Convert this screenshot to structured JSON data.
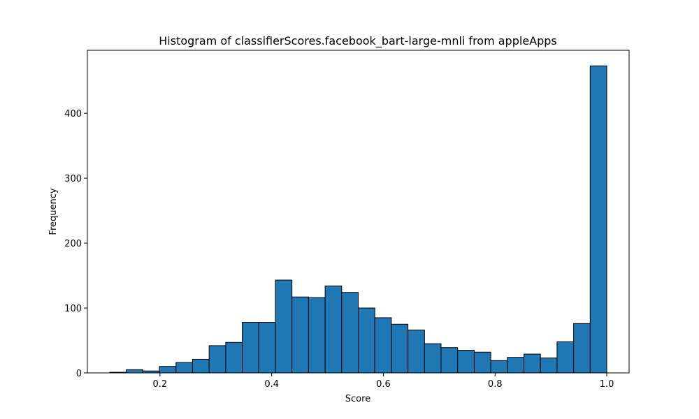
{
  "chart_data": {
    "type": "bar",
    "title": "Histogram of classifierScores.facebook_bart-large-mnli from appleApps",
    "xlabel": "Score",
    "ylabel": "Frequency",
    "xlim": [
      0.07,
      1.04
    ],
    "ylim": [
      0,
      497
    ],
    "grid": false,
    "legend": "none",
    "bar_color": "#1f77b4",
    "edge_color": "#000000",
    "bin_edges": [
      0.11,
      0.1397,
      0.1693,
      0.199,
      0.2287,
      0.2583,
      0.288,
      0.3177,
      0.3473,
      0.377,
      0.4067,
      0.4363,
      0.466,
      0.4957,
      0.5253,
      0.555,
      0.5847,
      0.6143,
      0.644,
      0.6737,
      0.7033,
      0.733,
      0.7627,
      0.7923,
      0.822,
      0.8517,
      0.8813,
      0.911,
      0.9407,
      0.9703,
      1.0
    ],
    "values": [
      1,
      5,
      3,
      10,
      16,
      21,
      42,
      47,
      78,
      78,
      143,
      117,
      116,
      134,
      124,
      100,
      85,
      75,
      66,
      45,
      39,
      35,
      32,
      19,
      24,
      29,
      23,
      48,
      76,
      473
    ],
    "x_ticks": [
      {
        "value": 0.2,
        "label": "0.2"
      },
      {
        "value": 0.4,
        "label": "0.4"
      },
      {
        "value": 0.6,
        "label": "0.6"
      },
      {
        "value": 0.8,
        "label": "0.8"
      },
      {
        "value": 1.0,
        "label": "1.0"
      }
    ],
    "y_ticks": [
      {
        "value": 0,
        "label": "0"
      },
      {
        "value": 100,
        "label": "100"
      },
      {
        "value": 200,
        "label": "200"
      },
      {
        "value": 300,
        "label": "300"
      },
      {
        "value": 400,
        "label": "400"
      }
    ]
  }
}
